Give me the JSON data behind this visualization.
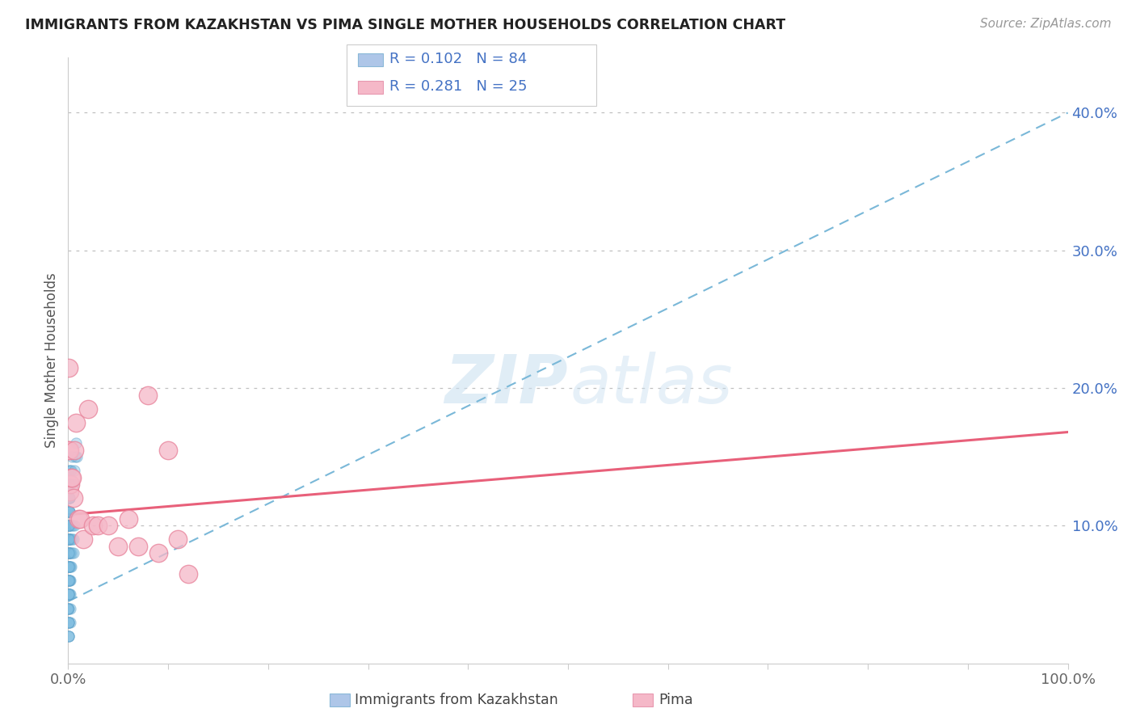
{
  "title": "IMMIGRANTS FROM KAZAKHSTAN VS PIMA SINGLE MOTHER HOUSEHOLDS CORRELATION CHART",
  "source": "Source: ZipAtlas.com",
  "ylabel": "Single Mother Households",
  "x_min": 0.0,
  "x_max": 1.0,
  "y_min": 0.0,
  "y_max": 0.44,
  "legend_label1": "R = 0.102   N = 84",
  "legend_label2": "R = 0.281   N = 25",
  "legend_color1": "#aec6e8",
  "legend_color2": "#f5b8c8",
  "dot_color_blue": "#7fbde0",
  "dot_color_pink": "#f5b8c8",
  "dot_edge_blue": "#5a9fc8",
  "dot_edge_pink": "#e8829a",
  "line_color_blue": "#7ab8d8",
  "line_color_pink": "#e8607a",
  "watermark_zip": "ZIP",
  "watermark_atlas": "atlas",
  "R_blue": 0.102,
  "N_blue": 84,
  "R_pink": 0.281,
  "N_pink": 25,
  "blue_line_x0": 0.0,
  "blue_line_y0": 0.045,
  "blue_line_x1": 1.0,
  "blue_line_y1": 0.4,
  "pink_line_x0": 0.0,
  "pink_line_y0": 0.108,
  "pink_line_x1": 1.0,
  "pink_line_y1": 0.168,
  "blue_x": [
    0.0003,
    0.0005,
    0.0002,
    0.0008,
    0.0001,
    0.0004,
    0.0006,
    0.0002,
    0.0003,
    0.0001,
    0.0007,
    0.0009,
    0.0004,
    0.0002,
    0.0005,
    0.0001,
    0.0003,
    0.0006,
    0.0008,
    0.0002,
    0.0001,
    0.0004,
    0.0003,
    0.0005,
    0.001,
    0.001,
    0.0012,
    0.0015,
    0.0011,
    0.0013,
    0.0014,
    0.0016,
    0.0018,
    0.0019,
    0.002,
    0.0022,
    0.0021,
    0.0023,
    0.0025,
    0.0027,
    0.0003,
    0.0002,
    0.0001,
    0.0004,
    0.0006,
    0.0007,
    0.0009,
    0.0008,
    0.001,
    0.0011,
    0.0012,
    0.0013,
    0.0015,
    0.0017,
    0.002,
    0.0025,
    0.003,
    0.0035,
    0.004,
    0.0045,
    0.005,
    0.0055,
    0.006,
    0.0002,
    0.0003,
    0.0001,
    0.0004,
    0.0002,
    0.0003,
    0.0005,
    0.0007,
    0.0009,
    0.001,
    0.0012,
    0.0015,
    0.002,
    0.0025,
    0.003,
    0.004,
    0.005,
    0.006,
    0.007,
    0.008,
    0.009
  ],
  "blue_y": [
    0.02,
    0.03,
    0.04,
    0.05,
    0.06,
    0.07,
    0.08,
    0.09,
    0.1,
    0.11,
    0.12,
    0.13,
    0.14,
    0.05,
    0.06,
    0.07,
    0.08,
    0.09,
    0.1,
    0.11,
    0.12,
    0.13,
    0.03,
    0.04,
    0.05,
    0.06,
    0.07,
    0.08,
    0.09,
    0.1,
    0.11,
    0.12,
    0.03,
    0.04,
    0.05,
    0.06,
    0.07,
    0.08,
    0.09,
    0.1,
    0.02,
    0.03,
    0.04,
    0.05,
    0.06,
    0.07,
    0.08,
    0.09,
    0.1,
    0.11,
    0.12,
    0.13,
    0.06,
    0.07,
    0.08,
    0.09,
    0.07,
    0.08,
    0.09,
    0.1,
    0.08,
    0.09,
    0.1,
    0.02,
    0.03,
    0.04,
    0.05,
    0.06,
    0.07,
    0.08,
    0.09,
    0.1,
    0.11,
    0.12,
    0.13,
    0.14,
    0.13,
    0.14,
    0.15,
    0.13,
    0.14,
    0.15,
    0.16,
    0.15
  ],
  "pink_x": [
    0.0002,
    0.0005,
    0.001,
    0.0015,
    0.002,
    0.003,
    0.004,
    0.005,
    0.006,
    0.008,
    0.01,
    0.012,
    0.015,
    0.02,
    0.025,
    0.03,
    0.04,
    0.05,
    0.06,
    0.07,
    0.08,
    0.09,
    0.1,
    0.11,
    0.12
  ],
  "pink_y": [
    0.215,
    0.155,
    0.155,
    0.125,
    0.13,
    0.135,
    0.135,
    0.12,
    0.155,
    0.175,
    0.105,
    0.105,
    0.09,
    0.185,
    0.1,
    0.1,
    0.1,
    0.085,
    0.105,
    0.085,
    0.195,
    0.08,
    0.155,
    0.09,
    0.065
  ]
}
